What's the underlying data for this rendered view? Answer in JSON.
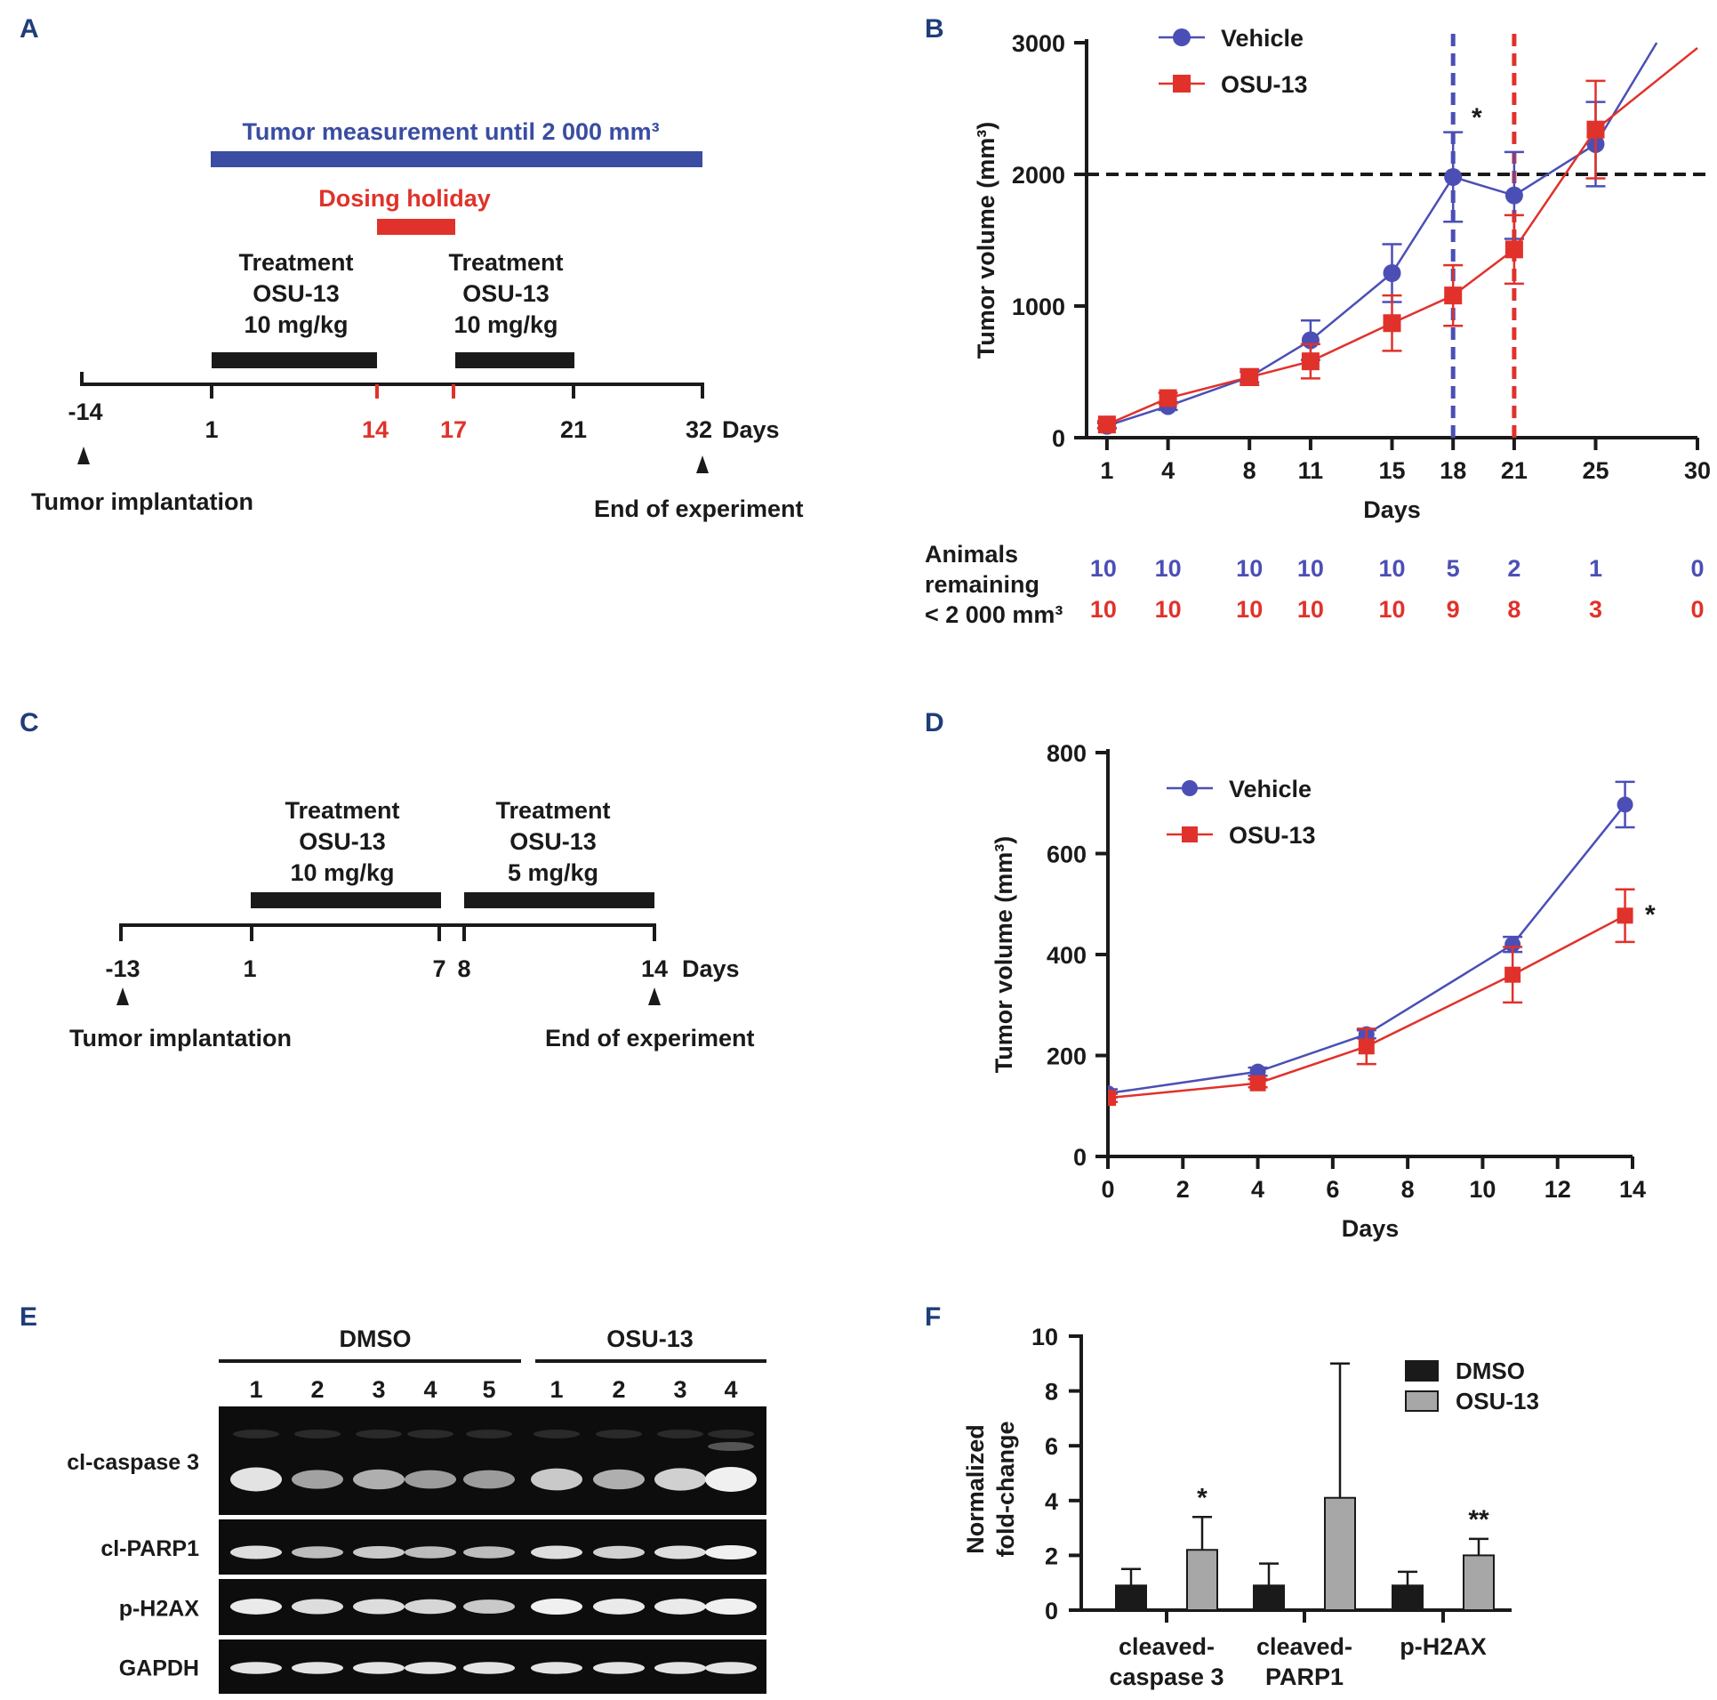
{
  "colors": {
    "vehicle": "#4b4fb5",
    "osu": "#e0322b",
    "panel_label": "#1f3d7a",
    "blue_bar": "#3a4da3",
    "red_bar": "#e0322b",
    "dark": "#1a1a1a",
    "gray_bar": "#a7a7a7"
  },
  "panel_labels": {
    "a": "A",
    "b": "B",
    "c": "C",
    "d": "D",
    "e": "E",
    "f": "F"
  },
  "timeline_a": {
    "blue_bar_label": "Tumor measurement until 2 000 mm³",
    "holiday_label": "Dosing holiday",
    "treat1": [
      "Treatment",
      "OSU-13",
      "10 mg/kg"
    ],
    "treat2": [
      "Treatment",
      "OSU-13",
      "10 mg/kg"
    ],
    "ticks": [
      "-14",
      "1",
      "14",
      "17",
      "21",
      "32"
    ],
    "days_label": "Days",
    "implant_label": "Tumor  implantation",
    "end_label": "End of  experiment"
  },
  "timeline_c": {
    "treat1": [
      "Treatment",
      "OSU-13",
      "10 mg/kg"
    ],
    "treat2": [
      "Treatment",
      "OSU-13",
      "5 mg/kg"
    ],
    "ticks": [
      "-13",
      "1",
      "7",
      "8",
      "14"
    ],
    "days_label": "Days",
    "implant_label": "Tumor  implantation",
    "end_label": "End of  experiment"
  },
  "animals_table": {
    "label_lines": [
      "Animals",
      "remaining",
      "< 2 000 mm³"
    ],
    "vehicle": [
      "10",
      "10",
      "10",
      "10",
      "10",
      "5",
      "2",
      "1",
      "0"
    ],
    "osu": [
      "10",
      "10",
      "10",
      "10",
      "10",
      "9",
      "8",
      "3",
      "0"
    ]
  },
  "western_blot": {
    "groups": [
      "DMSO",
      "OSU-13"
    ],
    "dmso_lanes": [
      "1",
      "2",
      "3",
      "4",
      "5"
    ],
    "osu_lanes": [
      "1",
      "2",
      "3",
      "4"
    ],
    "rows": [
      "cl-caspase 3",
      "cl-PARP1",
      "p-H2AX",
      "GAPDH"
    ]
  },
  "chart_data": [
    {
      "panel": "B",
      "type": "line",
      "title": "",
      "xlabel": "Days",
      "ylabel": "Tumor volume (mm³)",
      "xlim": [
        0,
        30
      ],
      "ylim": [
        0,
        3000
      ],
      "x_ticks": [
        1,
        4,
        8,
        11,
        15,
        18,
        21,
        25,
        30
      ],
      "y_ticks": [
        0,
        1000,
        2000,
        3000
      ],
      "threshold_line": 2000,
      "vertical_lines": [
        {
          "x": 18,
          "series": "Vehicle"
        },
        {
          "x": 21,
          "series": "OSU-13"
        }
      ],
      "annotation": "*",
      "legend_position": "top-left",
      "series": [
        {
          "name": "Vehicle",
          "marker": "circle",
          "x": [
            1,
            4,
            8,
            11,
            15,
            18,
            21,
            25,
            28
          ],
          "values": [
            90,
            240,
            460,
            740,
            1250,
            1980,
            1840,
            2230,
            3000
          ],
          "errors": [
            20,
            30,
            40,
            150,
            220,
            340,
            330,
            320,
            null
          ]
        },
        {
          "name": "OSU-13",
          "marker": "square",
          "x": [
            1,
            4,
            8,
            11,
            15,
            18,
            21,
            25,
            30
          ],
          "values": [
            100,
            300,
            460,
            580,
            870,
            1080,
            1430,
            2340,
            2960
          ],
          "errors": [
            25,
            40,
            60,
            130,
            210,
            230,
            260,
            370,
            null
          ]
        }
      ]
    },
    {
      "panel": "D",
      "type": "line",
      "title": "",
      "xlabel": "Days",
      "ylabel": "Tumor volume (mm³)",
      "xlim": [
        0,
        14
      ],
      "ylim": [
        0,
        800
      ],
      "x_ticks": [
        0,
        2,
        4,
        6,
        8,
        10,
        12,
        14
      ],
      "y_ticks": [
        0,
        200,
        400,
        600,
        800
      ],
      "annotation": "*",
      "legend_position": "top-left",
      "series": [
        {
          "name": "Vehicle",
          "marker": "circle",
          "x": [
            0,
            4,
            6.9,
            10.8,
            13.8
          ],
          "values": [
            125,
            168,
            242,
            420,
            697
          ],
          "errors": [
            8,
            8,
            8,
            15,
            45
          ]
        },
        {
          "name": "OSU-13",
          "marker": "square",
          "x": [
            0,
            4,
            6.9,
            10.8,
            13.8
          ],
          "values": [
            116,
            145,
            218,
            360,
            477
          ],
          "errors": [
            8,
            8,
            35,
            55,
            52
          ]
        }
      ]
    },
    {
      "panel": "F",
      "type": "bar",
      "title": "",
      "xlabel": "",
      "ylabel": "Normalized fold-change",
      "ylabel_lines": [
        "Normalized",
        "fold-change"
      ],
      "ylim": [
        0,
        10
      ],
      "y_ticks": [
        0,
        2,
        4,
        6,
        8,
        10
      ],
      "categories": [
        "cleaved-caspase 3",
        "cleaved-PARP1",
        "p-H2AX"
      ],
      "category_lines": [
        [
          "cleaved-",
          "caspase 3"
        ],
        [
          "cleaved-",
          "PARP1"
        ],
        [
          "p-H2AX"
        ]
      ],
      "legend_position": "top-right",
      "significance": [
        "*",
        "",
        "**"
      ],
      "series": [
        {
          "name": "DMSO",
          "values": [
            0.9,
            0.9,
            0.9
          ],
          "errors": [
            0.6,
            0.8,
            0.5
          ]
        },
        {
          "name": "OSU-13",
          "values": [
            2.2,
            4.1,
            2.0
          ],
          "errors": [
            1.2,
            4.9,
            0.6
          ]
        }
      ]
    }
  ]
}
